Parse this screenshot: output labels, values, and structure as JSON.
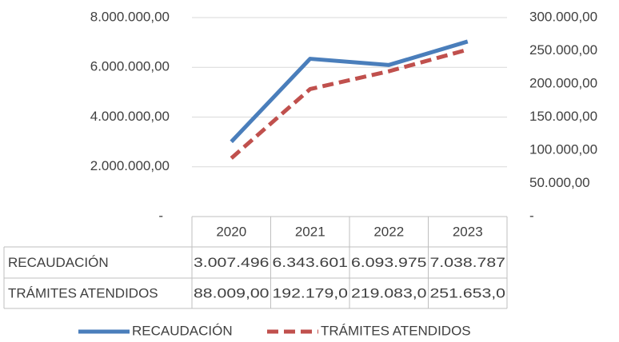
{
  "chart_data": {
    "type": "line",
    "categories": [
      "2020",
      "2021",
      "2022",
      "2023"
    ],
    "series": [
      {
        "name": "RECAUDACIÓN",
        "color": "#4a7ebb",
        "values": [
          3007496,
          6343601,
          6093975,
          7038787
        ],
        "value_labels": [
          "3.007.496",
          "6.343.601",
          "6.093.975",
          "7.038.787"
        ]
      },
      {
        "name": "TRÁMITES ATENDIDOS",
        "color": "#c0504d",
        "axis": "y2",
        "dashed": true,
        "values": [
          88009,
          192179,
          219083,
          251653
        ],
        "value_labels": [
          "88.009,00",
          "192.179,0",
          "219.083,0",
          "251.653,0"
        ]
      }
    ],
    "ylim": [
      0,
      8000000
    ],
    "yticks": [
      {
        "value": 0,
        "label": "-"
      },
      {
        "value": 2000000,
        "label": "2.000.000,00"
      },
      {
        "value": 4000000,
        "label": "4.000.000,00"
      },
      {
        "value": 6000000,
        "label": "6.000.000,00"
      },
      {
        "value": 8000000,
        "label": "8.000.000,00"
      }
    ],
    "y2lim": [
      0,
      300000
    ],
    "y2ticks": [
      {
        "value": 0,
        "label": "-"
      },
      {
        "value": 50000,
        "label": "50.000,00"
      },
      {
        "value": 100000,
        "label": "100.000,00"
      },
      {
        "value": 150000,
        "label": "150.000,00"
      },
      {
        "value": 200000,
        "label": "200.000,00"
      },
      {
        "value": 250000,
        "label": "250.000,00"
      },
      {
        "value": 300000,
        "label": "300.000,00"
      }
    ],
    "grid": true,
    "legend": "bottom",
    "data_table": true
  }
}
